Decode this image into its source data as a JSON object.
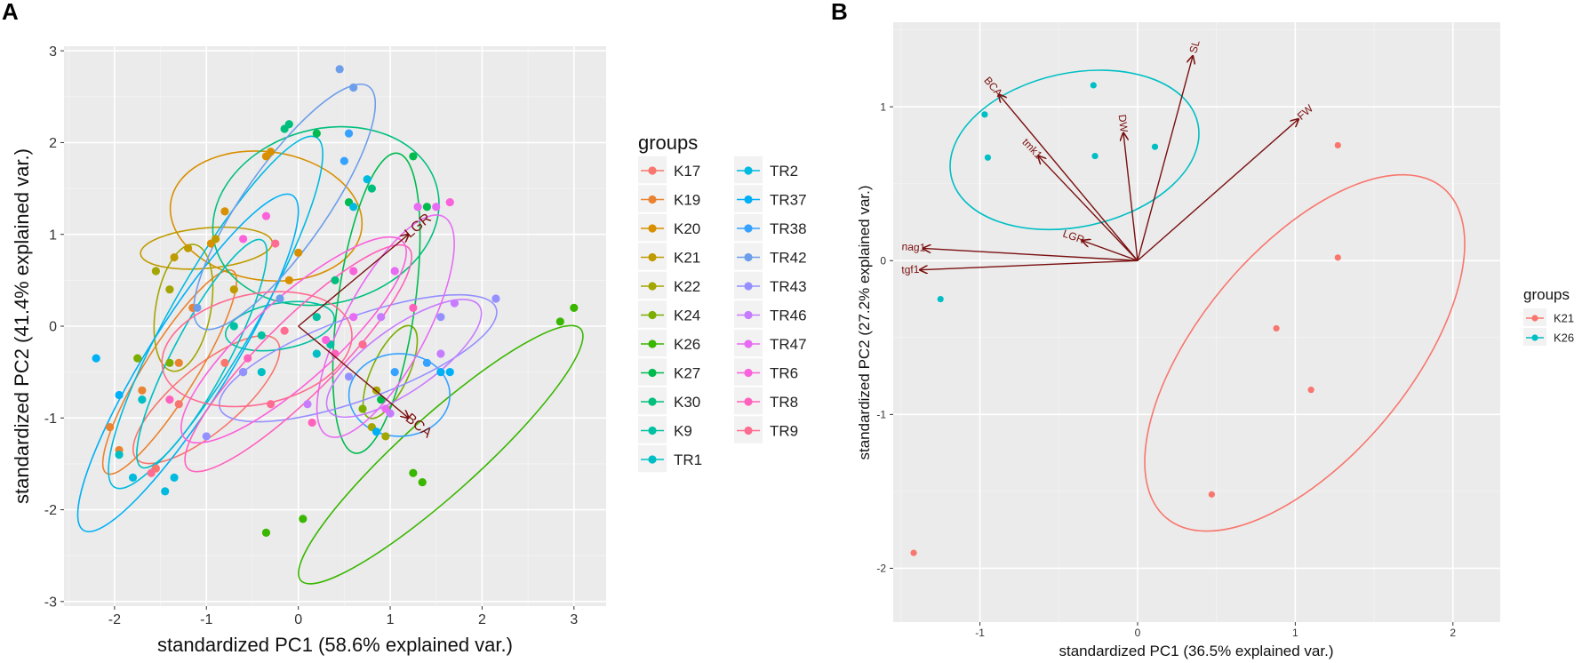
{
  "panels": [
    {
      "id": "A",
      "letter": "A",
      "chart_data": {
        "type": "scatter",
        "subtype": "pca-biplot",
        "xlabel": "standardized PC1 (58.6% explained var.)",
        "ylabel": "standardized PC2 (41.4% explained var.)",
        "xlim": [
          -2.55,
          3.35
        ],
        "ylim": [
          -3.05,
          3.05
        ],
        "xticks": [
          -2,
          -1,
          0,
          1,
          2,
          3
        ],
        "yticks": [
          -3,
          -2,
          -1,
          0,
          1,
          2,
          3
        ],
        "grid": true,
        "legend_title": "groups",
        "legend_position": "right",
        "series": [
          {
            "name": "K17",
            "color": "#F8766D",
            "points": [
              [
                -1.55,
                -1.55
              ],
              [
                -1.3,
                -0.85
              ],
              [
                -0.8,
                -0.4
              ]
            ],
            "ellipse": {
              "cx": -1.0,
              "cy": -0.8,
              "rx": 1.0,
              "ry": 0.35,
              "angle": 40
            }
          },
          {
            "name": "K19",
            "color": "#EA8331",
            "points": [
              [
                -2.05,
                -1.1
              ],
              [
                -1.95,
                -1.35
              ],
              [
                -1.7,
                -0.7
              ],
              [
                -1.3,
                -0.4
              ],
              [
                -1.15,
                0.2
              ]
            ],
            "ellipse": {
              "cx": -1.4,
              "cy": -0.5,
              "rx": 1.3,
              "ry": 0.28,
              "angle": 58
            }
          },
          {
            "name": "K20",
            "color": "#D89000",
            "points": [
              [
                -0.35,
                1.85
              ],
              [
                -0.3,
                1.9
              ],
              [
                -0.8,
                1.25
              ],
              [
                -0.95,
                0.9
              ],
              [
                -0.1,
                0.5
              ],
              [
                0.0,
                0.8
              ]
            ],
            "ellipse": {
              "cx": -0.35,
              "cy": 1.2,
              "rx": 1.05,
              "ry": 0.7,
              "angle": -8
            }
          },
          {
            "name": "K21",
            "color": "#C09B00",
            "points": [
              [
                -1.35,
                0.75
              ],
              [
                -1.2,
                0.85
              ],
              [
                -0.9,
                0.95
              ],
              [
                -0.7,
                0.4
              ]
            ],
            "ellipse": {
              "cx": -1.0,
              "cy": 0.85,
              "rx": 0.72,
              "ry": 0.22,
              "angle": 5
            }
          },
          {
            "name": "K22",
            "color": "#A3A500",
            "points": [
              [
                -1.55,
                0.6
              ],
              [
                -1.4,
                0.4
              ],
              [
                0.85,
                -0.7
              ],
              [
                0.8,
                -1.1
              ],
              [
                0.95,
                -1.2
              ]
            ],
            "ellipse": {
              "cx": -1.25,
              "cy": 0.2,
              "rx": 0.7,
              "ry": 0.3,
              "angle": 80
            }
          },
          {
            "name": "K24",
            "color": "#7CAE00",
            "points": [
              [
                -1.75,
                -0.35
              ],
              [
                -1.4,
                -0.4
              ],
              [
                0.7,
                -0.9
              ]
            ],
            "ellipse": {
              "cx": 1.0,
              "cy": -0.5,
              "rx": 0.55,
              "ry": 0.2,
              "angle": 65
            }
          },
          {
            "name": "K26",
            "color": "#39B600",
            "points": [
              [
                -0.35,
                -2.25
              ],
              [
                0.05,
                -2.1
              ],
              [
                1.25,
                -1.6
              ],
              [
                1.35,
                -1.7
              ],
              [
                2.85,
                0.05
              ],
              [
                3.0,
                0.2
              ]
            ],
            "ellipse": {
              "cx": 1.55,
              "cy": -1.4,
              "rx": 2.05,
              "ry": 0.42,
              "angle": 42
            }
          },
          {
            "name": "K27",
            "color": "#00BB4E",
            "points": [
              [
                0.2,
                2.1
              ],
              [
                0.55,
                1.35
              ],
              [
                1.25,
                1.85
              ],
              [
                1.4,
                1.3
              ],
              [
                0.9,
                -0.8
              ]
            ],
            "ellipse": {
              "cx": 0.85,
              "cy": 0.25,
              "rx": 1.65,
              "ry": 0.42,
              "angle": 82
            }
          },
          {
            "name": "K30",
            "color": "#00BF7D",
            "points": [
              [
                -0.15,
                2.15
              ],
              [
                -0.1,
                2.2
              ],
              [
                0.8,
                1.5
              ],
              [
                0.4,
                0.5
              ],
              [
                -0.6,
                -0.5
              ]
            ],
            "ellipse": {
              "cx": 0.3,
              "cy": 1.2,
              "rx": 1.25,
              "ry": 0.95,
              "angle": 15
            }
          },
          {
            "name": "K9",
            "color": "#00C1A3",
            "points": [
              [
                -0.7,
                0.0
              ],
              [
                -0.4,
                -0.1
              ],
              [
                0.2,
                0.1
              ],
              [
                0.35,
                -0.2
              ]
            ],
            "ellipse": {
              "cx": -0.2,
              "cy": 0.0,
              "rx": 0.6,
              "ry": 0.25,
              "angle": 10
            }
          },
          {
            "name": "TR1",
            "color": "#00BFC4",
            "points": [
              [
                -1.95,
                -1.4
              ],
              [
                -1.7,
                -0.8
              ],
              [
                -0.4,
                -0.5
              ],
              [
                0.2,
                -0.3
              ]
            ],
            "ellipse": {
              "cx": -1.05,
              "cy": -0.3,
              "rx": 1.4,
              "ry": 0.3,
              "angle": 62
            }
          },
          {
            "name": "TR2",
            "color": "#00BAE0",
            "points": [
              [
                -1.8,
                -1.65
              ],
              [
                -1.45,
                -1.8
              ],
              [
                -1.35,
                -1.65
              ],
              [
                0.6,
                1.3
              ],
              [
                0.75,
                1.6
              ]
            ],
            "ellipse": {
              "cx": -0.9,
              "cy": 0.15,
              "rx": 2.2,
              "ry": 0.45,
              "angle": 60
            }
          },
          {
            "name": "TR37",
            "color": "#00B0F6",
            "points": [
              [
                -2.2,
                -0.35
              ],
              [
                -1.95,
                -0.75
              ],
              [
                1.55,
                -0.5
              ],
              [
                1.65,
                -0.5
              ],
              [
                0.85,
                -1.15
              ]
            ],
            "ellipse": {
              "cx": -1.2,
              "cy": -0.4,
              "rx": 2.15,
              "ry": 0.45,
              "angle": 58
            }
          },
          {
            "name": "TR38",
            "color": "#35A2FF",
            "points": [
              [
                0.5,
                1.8
              ],
              [
                0.55,
                2.1
              ],
              [
                1.05,
                -0.5
              ],
              [
                1.4,
                -0.4
              ]
            ],
            "ellipse": {
              "cx": 1.1,
              "cy": -0.75,
              "rx": 0.55,
              "ry": 0.45,
              "angle": 0
            }
          },
          {
            "name": "TR42",
            "color": "#6D9EEB",
            "points": [
              [
                0.45,
                2.8
              ],
              [
                0.6,
                2.6
              ],
              [
                -1.1,
                0.2
              ],
              [
                -0.2,
                0.3
              ]
            ],
            "ellipse": {
              "cx": -0.15,
              "cy": 1.3,
              "rx": 1.6,
              "ry": 0.45,
              "angle": 55
            }
          },
          {
            "name": "TR43",
            "color": "#9590FF",
            "points": [
              [
                -0.6,
                -0.5
              ],
              [
                -1.0,
                -1.2
              ],
              [
                0.55,
                -0.55
              ],
              [
                1.55,
                0.1
              ],
              [
                2.15,
                0.3
              ]
            ],
            "ellipse": {
              "cx": 0.65,
              "cy": -0.35,
              "rx": 1.6,
              "ry": 0.45,
              "angle": 20
            }
          },
          {
            "name": "TR46",
            "color": "#C77CFF",
            "points": [
              [
                0.9,
                0.1
              ],
              [
                1.55,
                -0.3
              ],
              [
                1.7,
                0.25
              ],
              [
                1.0,
                -0.95
              ],
              [
                0.1,
                -0.85
              ]
            ],
            "ellipse": {
              "cx": 1.15,
              "cy": -0.35,
              "rx": 1.0,
              "ry": 0.35,
              "angle": 35
            }
          },
          {
            "name": "TR47",
            "color": "#E76BF3",
            "points": [
              [
                1.3,
                1.3
              ],
              [
                1.5,
                1.3
              ],
              [
                1.05,
                0.6
              ],
              [
                0.6,
                0.1
              ],
              [
                0.95,
                -0.9
              ]
            ],
            "ellipse": {
              "cx": 0.95,
              "cy": 0.0,
              "rx": 1.35,
              "ry": 0.45,
              "angle": 62
            }
          },
          {
            "name": "TR6",
            "color": "#FA62DB",
            "points": [
              [
                1.65,
                1.35
              ],
              [
                0.6,
                0.6
              ],
              [
                -0.35,
                1.2
              ],
              [
                -0.6,
                0.95
              ],
              [
                0.3,
                -0.15
              ]
            ],
            "ellipse": {
              "cx": -0.05,
              "cy": -0.15,
              "rx": 1.6,
              "ry": 0.45,
              "angle": 42
            }
          },
          {
            "name": "TR8",
            "color": "#FF62BC",
            "points": [
              [
                1.25,
                0.2
              ],
              [
                0.4,
                -0.3
              ],
              [
                -0.55,
                -0.35
              ],
              [
                -1.4,
                -0.8
              ],
              [
                0.15,
                -1.05
              ]
            ],
            "ellipse": {
              "cx": 0.0,
              "cy": -0.35,
              "rx": 1.7,
              "ry": 0.4,
              "angle": 45
            }
          },
          {
            "name": "TR9",
            "color": "#FF6C91",
            "points": [
              [
                -0.25,
                0.9
              ],
              [
                -0.15,
                -0.05
              ],
              [
                0.7,
                -0.2
              ],
              [
                -0.3,
                -0.85
              ],
              [
                -1.6,
                -1.6
              ]
            ],
            "ellipse": {
              "cx": -0.45,
              "cy": -0.25,
              "rx": 1.05,
              "ry": 0.6,
              "angle": 12
            }
          }
        ],
        "arrows": [
          {
            "label": "LGR",
            "x": 1.2,
            "y": 1.0
          },
          {
            "label": "BCA",
            "x": 1.2,
            "y": -1.0
          }
        ]
      }
    },
    {
      "id": "B",
      "letter": "B",
      "chart_data": {
        "type": "scatter",
        "subtype": "pca-biplot",
        "xlabel": "standardized PC1 (36.5% explained var.)",
        "ylabel": "standardized PC2 (27.2% explained var.)",
        "xlim": [
          -1.55,
          2.3
        ],
        "ylim": [
          -2.35,
          1.55
        ],
        "xticks": [
          -1,
          0,
          1,
          2
        ],
        "yticks": [
          -2,
          -1,
          0,
          1
        ],
        "grid": true,
        "legend_title": "groups",
        "legend_position": "right",
        "series": [
          {
            "name": "K21",
            "color": "#F8766D",
            "points": [
              [
                1.27,
                0.75
              ],
              [
                1.27,
                0.02
              ],
              [
                0.88,
                -0.44
              ],
              [
                1.1,
                -0.84
              ],
              [
                0.47,
                -1.52
              ],
              [
                -1.42,
                -1.9
              ]
            ],
            "ellipse": {
              "cx": 1.06,
              "cy": -0.6,
              "rx": 1.4,
              "ry": 0.68,
              "angle": 50
            }
          },
          {
            "name": "K26",
            "color": "#00BFC4",
            "points": [
              [
                -0.97,
                0.95
              ],
              [
                -0.28,
                1.14
              ],
              [
                -0.95,
                0.67
              ],
              [
                -0.27,
                0.68
              ],
              [
                0.11,
                0.74
              ],
              [
                -1.25,
                -0.25
              ]
            ],
            "ellipse": {
              "cx": -0.4,
              "cy": 0.72,
              "rx": 0.82,
              "ry": 0.5,
              "angle": 12
            }
          }
        ],
        "arrows": [
          {
            "label": "SL",
            "x": 0.35,
            "y": 1.33
          },
          {
            "label": "FW",
            "x": 1.02,
            "y": 0.92
          },
          {
            "label": "BCA",
            "x": -0.88,
            "y": 1.08
          },
          {
            "label": "DW",
            "x": -0.09,
            "y": 0.83
          },
          {
            "label": "tmk1",
            "x": -0.63,
            "y": 0.68
          },
          {
            "label": "LGR",
            "x": -0.35,
            "y": 0.13
          },
          {
            "label": "nag1",
            "x": -1.36,
            "y": 0.08
          },
          {
            "label": "tgf1",
            "x": -1.38,
            "y": -0.06
          }
        ]
      }
    }
  ]
}
